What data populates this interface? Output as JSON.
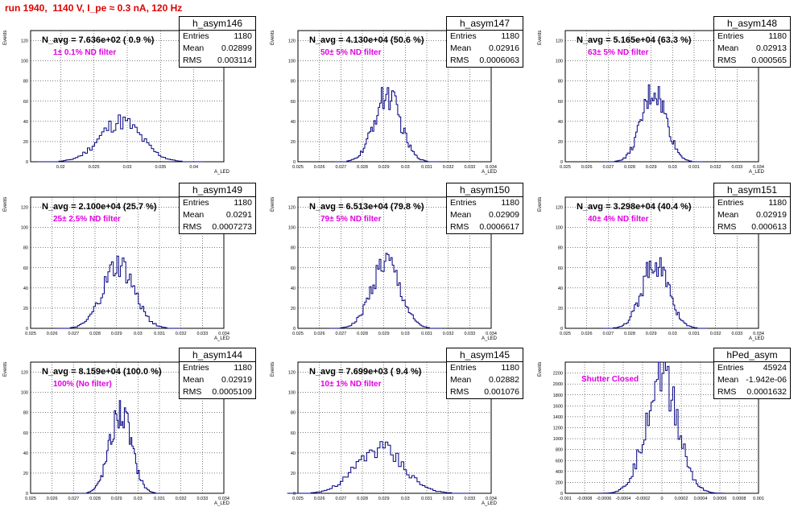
{
  "run_title": "run 1940,  1140 V, I_pe ≈ 0.3 nA, 120 Hz",
  "colors": {
    "histogram": "#000080",
    "filter_label": "#e000e0",
    "title": "#e00000"
  },
  "chart_data": [
    {
      "type": "bar",
      "name": "h_asym146",
      "entries": "1180",
      "mean": "0.02899",
      "rms": "0.003114",
      "navg": "N_avg = 7.636e+02 ( 0.9 %)",
      "filter": "1± 0.1% ND filter",
      "xlim": [
        0.0155,
        0.0445
      ],
      "ylim": [
        0,
        130
      ],
      "mu": 0.029,
      "sigma": 0.00311,
      "peak": 40,
      "xticks": [
        "0.02",
        "0.025",
        "0.03",
        "0.035",
        "0.04"
      ],
      "xtick_values": [
        0.02,
        0.025,
        0.03,
        0.035,
        0.04
      ],
      "yticks": [
        "0",
        "20",
        "40",
        "60",
        "80",
        "100",
        "120"
      ],
      "ylabel": "Events",
      "xlabel": "A_LED"
    },
    {
      "type": "bar",
      "name": "h_asym147",
      "entries": "1180",
      "mean": "0.02916",
      "rms": "0.0006063",
      "navg": "N_avg = 4.130e+04 (50.6 %)",
      "filter": "50± 5% ND filter",
      "xlim": [
        0.025,
        0.034
      ],
      "ylim": [
        0,
        130
      ],
      "mu": 0.02916,
      "sigma": 0.00061,
      "peak": 66,
      "xticks": [
        "0.025",
        "0.026",
        "0.027",
        "0.028",
        "0.029",
        "0.03",
        "0.031",
        "0.032",
        "0.033",
        "0.034"
      ],
      "xtick_values": [
        0.025,
        0.026,
        0.027,
        0.028,
        0.029,
        0.03,
        0.031,
        0.032,
        0.033,
        0.034
      ],
      "yticks": [
        "0",
        "20",
        "40",
        "60",
        "80",
        "100",
        "120"
      ],
      "ylabel": "Events",
      "xlabel": "A_LED"
    },
    {
      "type": "bar",
      "name": "h_asym148",
      "entries": "1180",
      "mean": "0.02913",
      "rms": "0.000565",
      "navg": "N_avg = 5.165e+04 (63.3 %)",
      "filter": "63± 5% ND filter",
      "xlim": [
        0.025,
        0.034
      ],
      "ylim": [
        0,
        130
      ],
      "mu": 0.02913,
      "sigma": 0.00057,
      "peak": 70,
      "xticks": [
        "0.025",
        "0.026",
        "0.027",
        "0.028",
        "0.029",
        "0.03",
        "0.031",
        "0.032",
        "0.033",
        "0.034"
      ],
      "xtick_values": [
        0.025,
        0.026,
        0.027,
        0.028,
        0.029,
        0.03,
        0.031,
        0.032,
        0.033,
        0.034
      ],
      "yticks": [
        "0",
        "20",
        "40",
        "60",
        "80",
        "100",
        "120"
      ],
      "ylabel": "Events",
      "xlabel": "A_LED"
    },
    {
      "type": "bar",
      "name": "h_asym149",
      "entries": "1180",
      "mean": "0.0291",
      "rms": "0.0007273",
      "navg": "N_avg = 2.100e+04 (25.7 %)",
      "filter": "25± 2.5% ND filter",
      "xlim": [
        0.025,
        0.034
      ],
      "ylim": [
        0,
        130
      ],
      "mu": 0.0291,
      "sigma": 0.00073,
      "peak": 62,
      "xticks": [
        "0.025",
        "0.026",
        "0.027",
        "0.028",
        "0.029",
        "0.03",
        "0.031",
        "0.032",
        "0.033",
        "0.034"
      ],
      "xtick_values": [
        0.025,
        0.026,
        0.027,
        0.028,
        0.029,
        0.03,
        0.031,
        0.032,
        0.033,
        0.034
      ],
      "yticks": [
        "0",
        "20",
        "40",
        "60",
        "80",
        "100",
        "120"
      ],
      "ylabel": "Events",
      "xlabel": "A_LED"
    },
    {
      "type": "bar",
      "name": "h_asym150",
      "entries": "1180",
      "mean": "0.02909",
      "rms": "0.0006617",
      "navg": "N_avg = 6.513e+04 (79.8 %)",
      "filter": "79± 5% ND filter",
      "xlim": [
        0.025,
        0.034
      ],
      "ylim": [
        0,
        130
      ],
      "mu": 0.02909,
      "sigma": 0.00066,
      "peak": 66,
      "xticks": [
        "0.025",
        "0.026",
        "0.027",
        "0.028",
        "0.029",
        "0.03",
        "0.031",
        "0.032",
        "0.033",
        "0.034"
      ],
      "xtick_values": [
        0.025,
        0.026,
        0.027,
        0.028,
        0.029,
        0.03,
        0.031,
        0.032,
        0.033,
        0.034
      ],
      "yticks": [
        "0",
        "20",
        "40",
        "60",
        "80",
        "100",
        "120"
      ],
      "ylabel": "Events",
      "xlabel": "A_LED"
    },
    {
      "type": "bar",
      "name": "h_asym151",
      "entries": "1180",
      "mean": "0.02919",
      "rms": "0.000613",
      "navg": "N_avg = 3.298e+04 (40.4 %)",
      "filter": "40± 4% ND filter",
      "xlim": [
        0.025,
        0.034
      ],
      "ylim": [
        0,
        130
      ],
      "mu": 0.02919,
      "sigma": 0.00061,
      "peak": 66,
      "xticks": [
        "0.025",
        "0.026",
        "0.027",
        "0.028",
        "0.029",
        "0.03",
        "0.031",
        "0.032",
        "0.033",
        "0.034"
      ],
      "xtick_values": [
        0.025,
        0.026,
        0.027,
        0.028,
        0.029,
        0.03,
        0.031,
        0.032,
        0.033,
        0.034
      ],
      "yticks": [
        "0",
        "20",
        "40",
        "60",
        "80",
        "100",
        "120"
      ],
      "ylabel": "Events",
      "xlabel": "A_LED"
    },
    {
      "type": "bar",
      "name": "h_asym144",
      "entries": "1180",
      "mean": "0.02919",
      "rms": "0.0005109",
      "navg": "N_avg = 8.159e+04 (100.0 %)",
      "filter": "100% (No filter)",
      "xlim": [
        0.025,
        0.034
      ],
      "ylim": [
        0,
        130
      ],
      "mu": 0.02919,
      "sigma": 0.00051,
      "peak": 80,
      "xticks": [
        "0.025",
        "0.026",
        "0.027",
        "0.028",
        "0.029",
        "0.03",
        "0.031",
        "0.032",
        "0.033",
        "0.034"
      ],
      "xtick_values": [
        0.025,
        0.026,
        0.027,
        0.028,
        0.029,
        0.03,
        0.031,
        0.032,
        0.033,
        0.034
      ],
      "yticks": [
        "0",
        "20",
        "40",
        "60",
        "80",
        "100",
        "120"
      ],
      "ylabel": "Events",
      "xlabel": "A_LED"
    },
    {
      "type": "bar",
      "name": "h_asym145",
      "entries": "1180",
      "mean": "0.02882",
      "rms": "0.001076",
      "navg": "N_avg = 7.699e+03 ( 9.4 %)",
      "filter": "10± 1% ND filter",
      "xlim": [
        0.025,
        0.034
      ],
      "ylim": [
        0,
        130
      ],
      "mu": 0.02882,
      "sigma": 0.00108,
      "peak": 45,
      "xticks": [
        "0.025",
        "0.026",
        "0.027",
        "0.028",
        "0.029",
        "0.03",
        "0.031",
        "0.032",
        "0.033",
        "0.034"
      ],
      "xtick_values": [
        0.025,
        0.026,
        0.027,
        0.028,
        0.029,
        0.03,
        0.031,
        0.032,
        0.033,
        0.034
      ],
      "yticks": [
        "0",
        "20",
        "40",
        "60",
        "80",
        "100",
        "120"
      ],
      "ylabel": "Events",
      "xlabel": "A_LED"
    },
    {
      "type": "bar",
      "name": "hPed_asym",
      "entries": "45924",
      "mean": "-1.942e-06",
      "rms": "0.0001632",
      "navg": "",
      "filter": "Shutter Closed",
      "xlim": [
        -0.001,
        0.001
      ],
      "ylim": [
        0,
        2400
      ],
      "mu": 0.0,
      "sigma": 0.000163,
      "peak": 2200,
      "xticks": [
        "-0.001",
        "-0.0008",
        "-0.0006",
        "-0.0004",
        "-0.0002",
        "0",
        "0.0002",
        "0.0004",
        "0.0006",
        "0.0008",
        "0.001"
      ],
      "xtick_values": [
        -0.001,
        -0.0008,
        -0.0006,
        -0.0004,
        -0.0002,
        0,
        0.0002,
        0.0004,
        0.0006,
        0.0008,
        0.001
      ],
      "yticks": [
        "0",
        "200",
        "400",
        "600",
        "800",
        "1000",
        "1200",
        "1400",
        "1600",
        "1800",
        "2000",
        "2200"
      ],
      "ylabel": "Events",
      "xlabel": ""
    }
  ]
}
